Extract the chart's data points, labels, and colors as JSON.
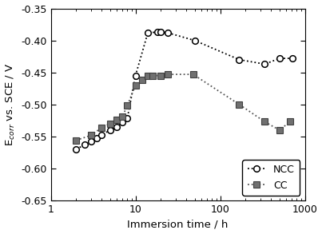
{
  "ncc_x": [
    2,
    2.5,
    3,
    3.5,
    4,
    5,
    6,
    7,
    8,
    10,
    14,
    18,
    20,
    24,
    50,
    168,
    336,
    504,
    720
  ],
  "ncc_y": [
    -0.57,
    -0.563,
    -0.558,
    -0.553,
    -0.548,
    -0.54,
    -0.535,
    -0.528,
    -0.522,
    -0.455,
    -0.388,
    -0.387,
    -0.387,
    -0.388,
    -0.4,
    -0.43,
    -0.437,
    -0.428,
    -0.428
  ],
  "cc_x": [
    2,
    3,
    4,
    5,
    6,
    7,
    8,
    10,
    12,
    14,
    16,
    20,
    24,
    48,
    168,
    336,
    500,
    672
  ],
  "cc_y": [
    -0.556,
    -0.548,
    -0.536,
    -0.53,
    -0.524,
    -0.519,
    -0.502,
    -0.47,
    -0.462,
    -0.455,
    -0.455,
    -0.455,
    -0.453,
    -0.453,
    -0.5,
    -0.527,
    -0.54,
    -0.527
  ],
  "xlim": [
    1,
    1000
  ],
  "ylim": [
    -0.65,
    -0.35
  ],
  "yticks": [
    -0.65,
    -0.6,
    -0.55,
    -0.5,
    -0.45,
    -0.4,
    -0.35
  ],
  "xticks": [
    1,
    10,
    100,
    1000
  ],
  "xlabel": "Immersion time / h",
  "ylabel": "E$_{corr}$ vs. SCE / V",
  "ncc_color": "#000000",
  "cc_color": "#555555",
  "marker_ncc": "o",
  "marker_cc": "s",
  "legend_labels": [
    "NCC",
    "CC"
  ],
  "background_color": "#ffffff",
  "figwidth": 4.03,
  "figheight": 2.93,
  "dpi": 100
}
